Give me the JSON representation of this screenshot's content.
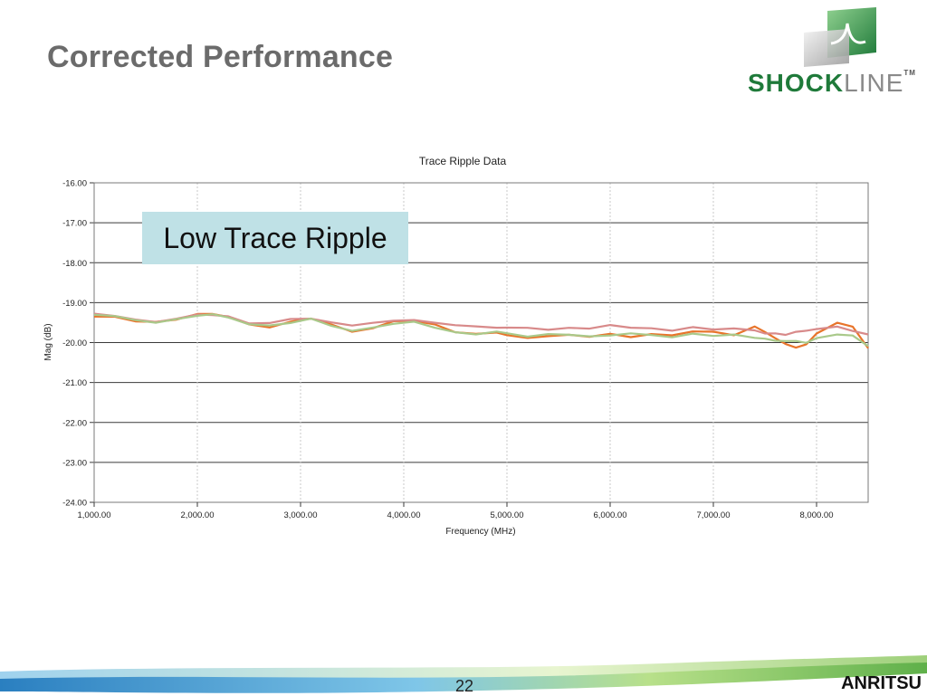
{
  "slide": {
    "title": "Corrected Performance",
    "page_number": "22",
    "brand": "ANRITSU",
    "logo": {
      "word_a": "SHOCK",
      "word_b": "LINE",
      "tm": "TM",
      "icon": "shockline-logo-icon"
    }
  },
  "callout": {
    "text": "Low Trace Ripple",
    "bg": "#bfe1e6"
  },
  "colors": {
    "series_orange": "#e8742a",
    "series_pink": "#d88a8a",
    "series_green": "#a9c98a",
    "title": "#6b6b6b"
  },
  "chart_data": {
    "type": "line",
    "title": "Trace Ripple Data",
    "xlabel": "Frequency (MHz)",
    "ylabel": "Mag (dB)",
    "xlim": [
      1000,
      8500
    ],
    "ylim": [
      -24,
      -16
    ],
    "xticks": [
      1000,
      2000,
      3000,
      4000,
      5000,
      6000,
      7000,
      8000
    ],
    "xtick_labels": [
      "1,000.00",
      "2,000.00",
      "3,000.00",
      "4,000.00",
      "5,000.00",
      "6,000.00",
      "7,000.00",
      "8,000.00"
    ],
    "yticks": [
      -16,
      -17,
      -18,
      -19,
      -20,
      -21,
      -22,
      -23,
      -24
    ],
    "ytick_labels": [
      "-16.00",
      "-17.00",
      "-18.00",
      "-19.00",
      "-20.00",
      "-21.00",
      "-22.00",
      "-23.00",
      "-24.00"
    ],
    "grid": true,
    "legend": "none",
    "series": [
      {
        "x": [
          1000,
          1200,
          1400,
          1600,
          1800,
          2000,
          2150,
          2300,
          2500,
          2700,
          2900,
          3100,
          3300,
          3500,
          3700,
          3900,
          4100,
          4300,
          4500,
          4700,
          4900,
          5000,
          5200,
          5400,
          5600,
          5800,
          6000,
          6200,
          6400,
          6600,
          6800,
          7000,
          7200,
          7400,
          7500,
          7600,
          7700,
          7800,
          7900,
          8000,
          8200,
          8350,
          8500
        ],
        "y": [
          -19.35,
          -19.35,
          -19.45,
          -19.5,
          -19.42,
          -19.3,
          -19.27,
          -19.35,
          -19.55,
          -19.62,
          -19.5,
          -19.38,
          -19.55,
          -19.72,
          -19.65,
          -19.48,
          -19.45,
          -19.55,
          -19.72,
          -19.8,
          -19.75,
          -19.82,
          -19.88,
          -19.82,
          -19.82,
          -19.85,
          -19.8,
          -19.85,
          -19.78,
          -19.82,
          -19.72,
          -19.75,
          -19.8,
          -19.6,
          -19.72,
          -19.9,
          -20.05,
          -20.12,
          -20.05,
          -19.75,
          -19.52,
          -19.6,
          -20.15
        ],
        "color": "#e8742a"
      },
      {
        "x": [
          1000,
          1200,
          1400,
          1600,
          1800,
          2000,
          2150,
          2300,
          2500,
          2700,
          2900,
          3100,
          3300,
          3500,
          3700,
          3900,
          4100,
          4300,
          4500,
          4700,
          4900,
          5000,
          5200,
          5400,
          5600,
          5800,
          6000,
          6200,
          6400,
          6600,
          6800,
          7000,
          7200,
          7400,
          7500,
          7600,
          7700,
          7800,
          7900,
          8000,
          8200,
          8350,
          8500
        ],
        "y": [
          -19.3,
          -19.32,
          -19.42,
          -19.48,
          -19.4,
          -19.32,
          -19.3,
          -19.35,
          -19.5,
          -19.52,
          -19.42,
          -19.4,
          -19.5,
          -19.55,
          -19.52,
          -19.45,
          -19.45,
          -19.5,
          -19.55,
          -19.6,
          -19.62,
          -19.65,
          -19.62,
          -19.68,
          -19.62,
          -19.65,
          -19.58,
          -19.62,
          -19.65,
          -19.68,
          -19.62,
          -19.68,
          -19.65,
          -19.7,
          -19.75,
          -19.78,
          -19.8,
          -19.75,
          -19.7,
          -19.65,
          -19.6,
          -19.7,
          -19.82
        ],
        "color": "#d88a8a"
      },
      {
        "x": [
          1000,
          1200,
          1400,
          1600,
          1800,
          2000,
          2150,
          2300,
          2500,
          2700,
          2900,
          3100,
          3300,
          3500,
          3700,
          3900,
          4100,
          4300,
          4500,
          4700,
          4900,
          5000,
          5200,
          5400,
          5600,
          5800,
          6000,
          6200,
          6400,
          6600,
          6800,
          7000,
          7200,
          7400,
          7500,
          7600,
          7700,
          7800,
          7900,
          8000,
          8200,
          8350,
          8500
        ],
        "y": [
          -19.32,
          -19.33,
          -19.45,
          -19.48,
          -19.42,
          -19.33,
          -19.3,
          -19.38,
          -19.52,
          -19.58,
          -19.5,
          -19.42,
          -19.58,
          -19.7,
          -19.62,
          -19.52,
          -19.5,
          -19.62,
          -19.75,
          -19.78,
          -19.72,
          -19.78,
          -19.85,
          -19.8,
          -19.78,
          -19.85,
          -19.82,
          -19.78,
          -19.82,
          -19.85,
          -19.78,
          -19.82,
          -19.82,
          -19.88,
          -19.9,
          -19.95,
          -19.95,
          -19.98,
          -20.0,
          -19.9,
          -19.78,
          -19.82,
          -20.1
        ],
        "color": "#a9c98a"
      }
    ]
  }
}
